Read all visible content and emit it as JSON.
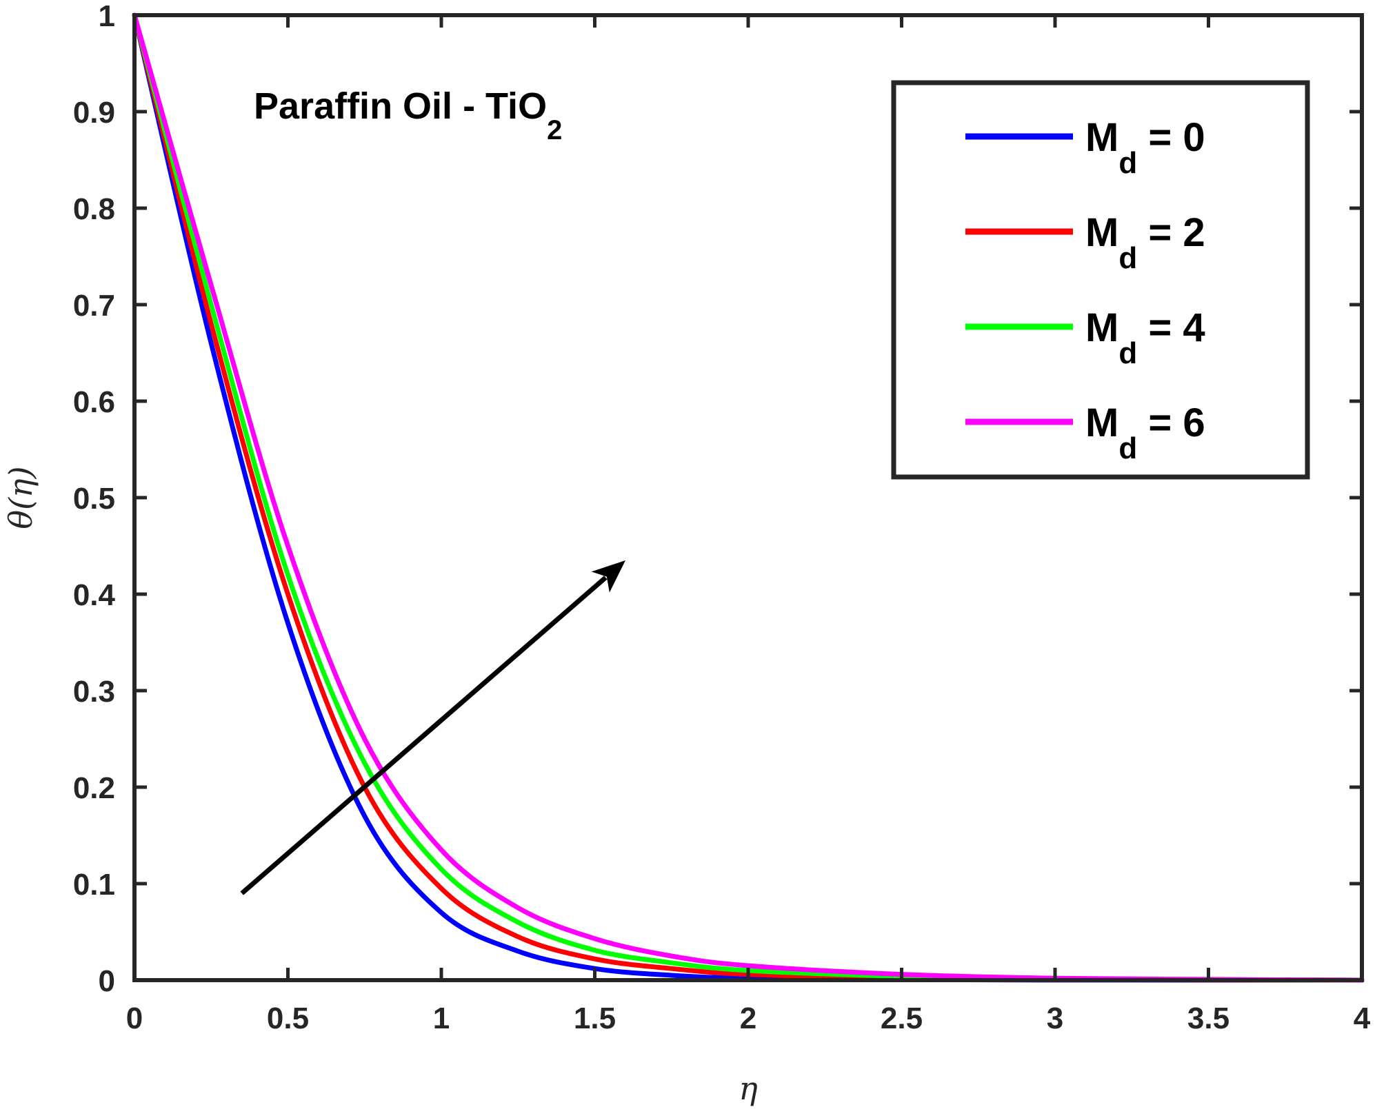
{
  "chart_data": {
    "type": "line",
    "title": "",
    "annotation": {
      "text": "Paraffin Oil - TiO",
      "subscript": "2"
    },
    "xlabel": "η",
    "ylabel": "θ(η)",
    "xlim": [
      0,
      4
    ],
    "ylim": [
      0,
      1
    ],
    "xticks": [
      0,
      0.5,
      1,
      1.5,
      2,
      2.5,
      3,
      3.5,
      4
    ],
    "xtick_labels": [
      "0",
      "0.5",
      "1",
      "1.5",
      "2",
      "2.5",
      "3",
      "3.5",
      "4"
    ],
    "yticks": [
      0,
      0.1,
      0.2,
      0.3,
      0.4,
      0.5,
      0.6,
      0.7,
      0.8,
      0.9,
      1
    ],
    "ytick_labels": [
      "0",
      "0.1",
      "0.2",
      "0.3",
      "0.4",
      "0.5",
      "0.6",
      "0.7",
      "0.8",
      "0.9",
      "1"
    ],
    "grid": false,
    "legend_position": "top-right",
    "x": [
      0,
      0.25,
      0.5,
      0.75,
      1.0,
      1.25,
      1.5,
      1.75,
      2.0,
      2.5,
      3.0,
      3.5,
      4.0
    ],
    "series": [
      {
        "name": "M",
        "subscript": "d",
        "value_text": " = 0",
        "color": "#0000ff",
        "values": [
          1.0,
          0.66,
          0.37,
          0.17,
          0.07,
          0.03,
          0.012,
          0.005,
          0.002,
          0.0005,
          0.0001,
          0.0,
          0.0
        ]
      },
      {
        "name": "M",
        "subscript": "d",
        "value_text": " = 2",
        "color": "#ff0000",
        "values": [
          1.0,
          0.68,
          0.4,
          0.2,
          0.095,
          0.045,
          0.022,
          0.012,
          0.006,
          0.002,
          0.0007,
          0.0002,
          0.0
        ]
      },
      {
        "name": "M",
        "subscript": "d",
        "value_text": " = 4",
        "color": "#00ff00",
        "values": [
          1.0,
          0.7,
          0.42,
          0.225,
          0.115,
          0.06,
          0.031,
          0.018,
          0.01,
          0.004,
          0.0015,
          0.0005,
          0.0
        ]
      },
      {
        "name": "M",
        "subscript": "d",
        "value_text": " = 6",
        "color": "#ff00ff",
        "values": [
          1.0,
          0.72,
          0.45,
          0.25,
          0.135,
          0.075,
          0.043,
          0.025,
          0.015,
          0.006,
          0.002,
          0.0008,
          0.0
        ]
      }
    ],
    "arrow": {
      "from": [
        0.35,
        0.09
      ],
      "to": [
        1.6,
        0.435
      ],
      "color": "#000000"
    }
  }
}
